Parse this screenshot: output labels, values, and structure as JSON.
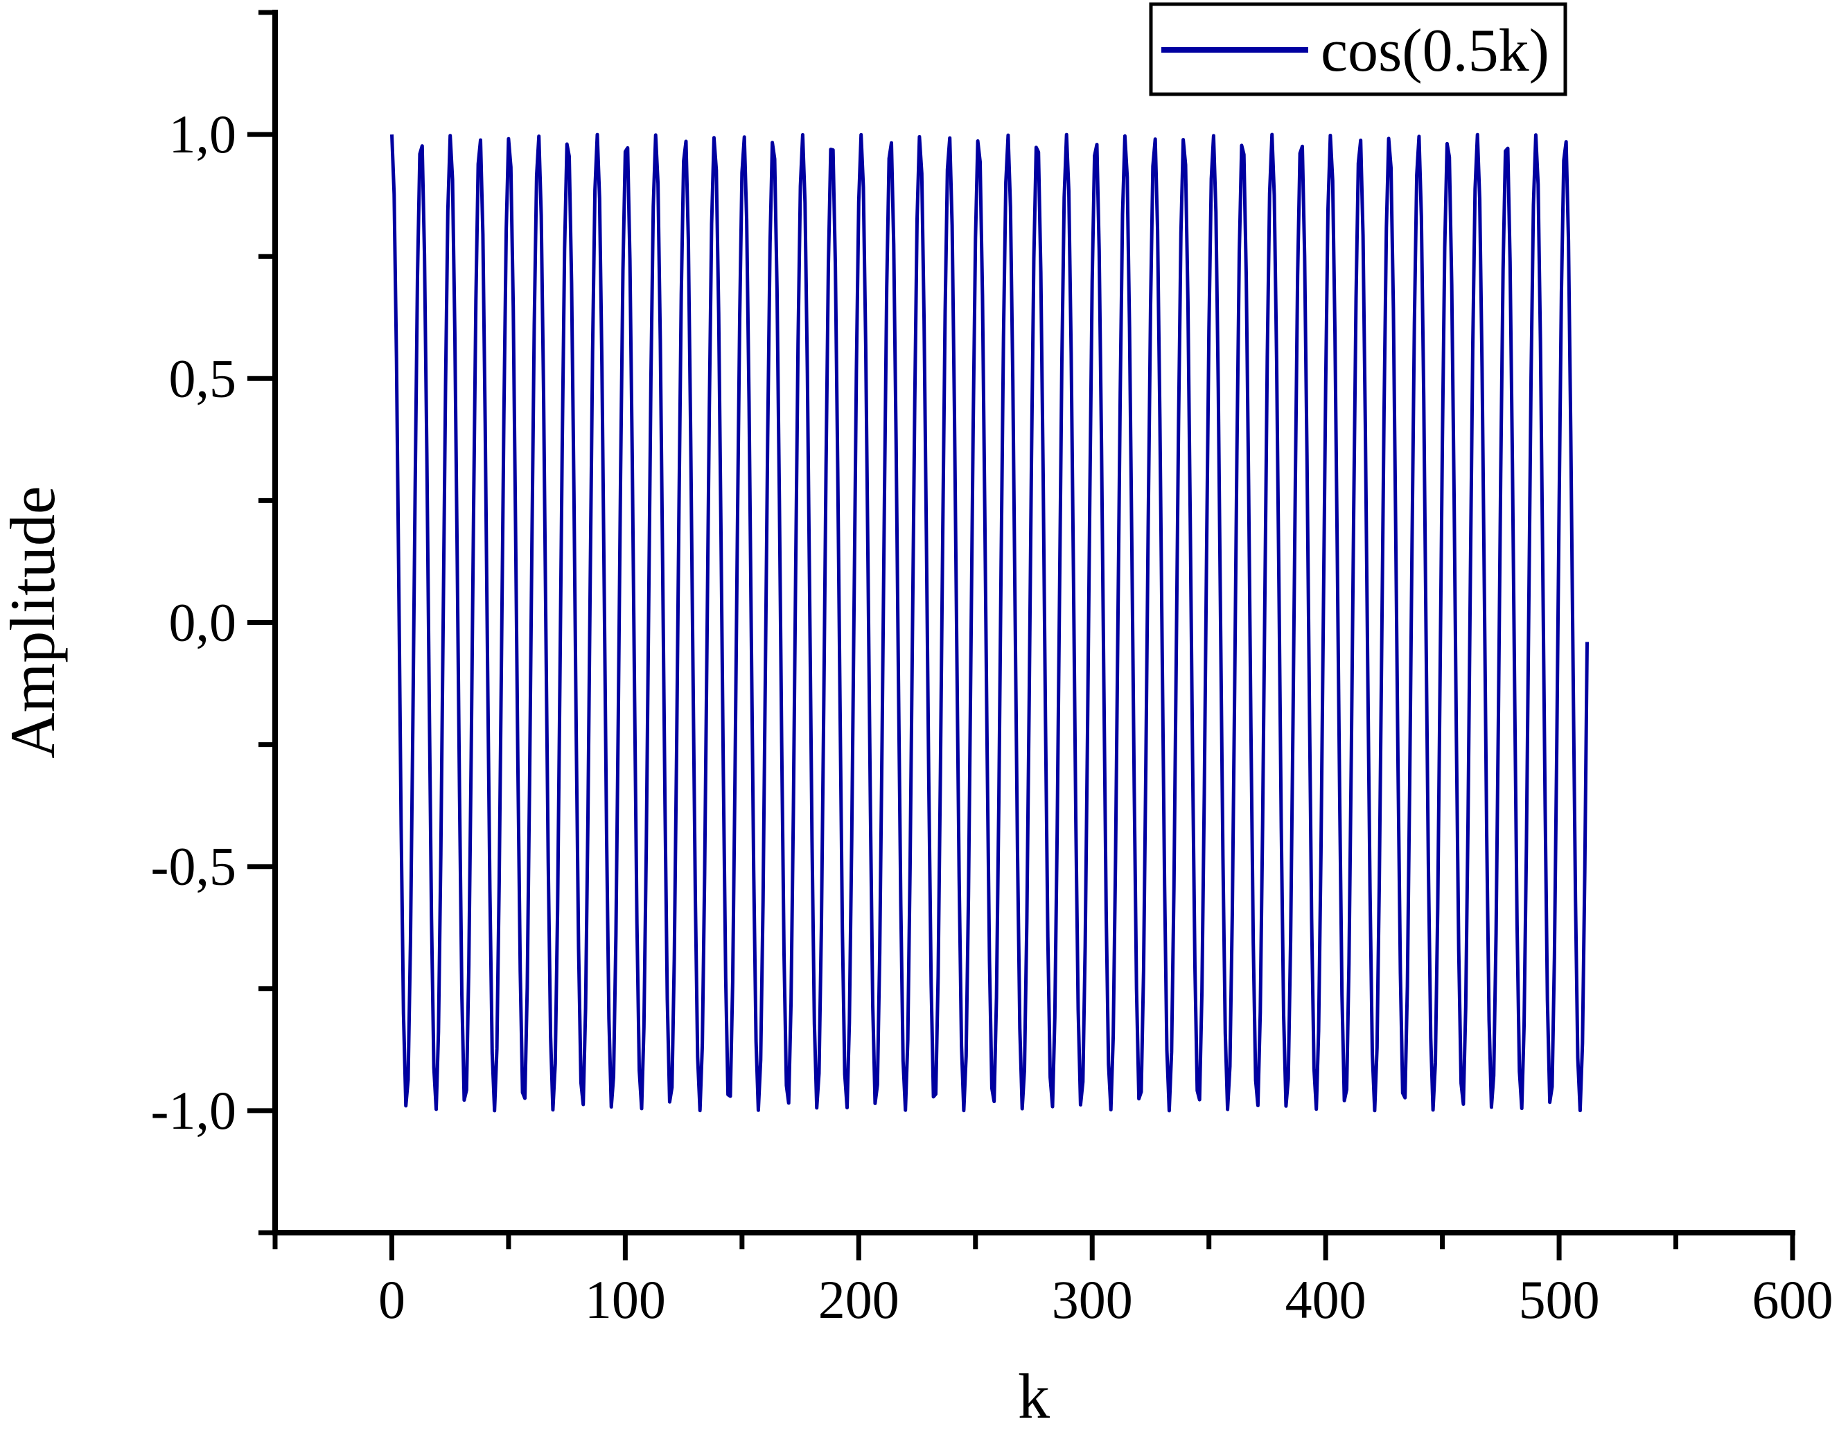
{
  "chart_data": {
    "type": "line",
    "title": "",
    "xlabel": "k",
    "ylabel": "Amplitude",
    "xlim": [
      -50,
      600
    ],
    "ylim": [
      -1.25,
      1.25
    ],
    "grid": false,
    "legend_position": "top-right",
    "decimal_separator": ",",
    "x_axis": {
      "major_ticks": [
        0,
        100,
        200,
        300,
        400,
        500,
        600
      ],
      "major_tick_labels": [
        "0",
        "100",
        "200",
        "300",
        "400",
        "500",
        "600"
      ],
      "minor_ticks": [
        -50,
        50,
        150,
        250,
        350,
        450,
        550
      ]
    },
    "y_axis": {
      "major_ticks": [
        1.0,
        0.5,
        0.0,
        -0.5,
        -1.0
      ],
      "major_tick_labels": [
        "1,0",
        "0,5",
        "0,0",
        "-0,5",
        "-1,0"
      ],
      "minor_ticks": [
        1.25,
        0.75,
        0.25,
        -0.25,
        -0.75,
        -1.25
      ]
    },
    "series": [
      {
        "name": "cos(0.5k)",
        "formula": "cos(0.5*k)",
        "omega": 0.5,
        "amplitude": 1,
        "k_start": 0,
        "k_end": 512,
        "k_step": 1,
        "color": "#0000A0",
        "line_width": 5
      }
    ]
  }
}
